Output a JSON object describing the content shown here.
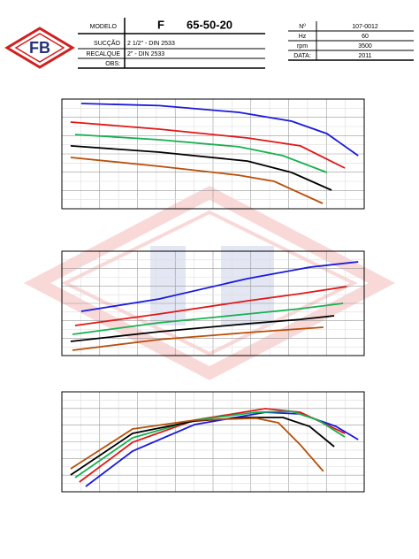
{
  "header": {
    "logo": "FB",
    "left_table": [
      [
        "MODELO",
        "F",
        "65-50-20"
      ],
      [
        "SUCÇÃO",
        "2 1/2\" - DIN 2533"
      ],
      [
        "RECALQUE",
        "2\" - DIN 2533"
      ],
      [
        "OBS:",
        ""
      ]
    ],
    "right_table": [
      [
        "Nº",
        "107-0012"
      ],
      [
        "Hz",
        "60"
      ],
      [
        "rpm",
        "3500"
      ],
      [
        "DATA:",
        "2011"
      ]
    ]
  },
  "chart_data": [
    {
      "type": "line",
      "xlim": [
        0,
        100
      ],
      "ylim": [
        0,
        100
      ],
      "grid": true,
      "series": [
        {
          "color": "#1a1adb",
          "x": [
            6.4,
            32.2,
            58.5,
            76,
            87.7,
            98
          ],
          "values": [
            96,
            94,
            87.9,
            79.8,
            68.5,
            48.4
          ]
        },
        {
          "color": "#e01818",
          "x": [
            2.9,
            32.2,
            61.4,
            78.9,
            93.6
          ],
          "values": [
            79,
            72.6,
            64.5,
            57.3,
            37.1
          ]
        },
        {
          "color": "#18b050",
          "x": [
            4.4,
            32.2,
            58.5,
            73.1,
            87.7
          ],
          "values": [
            67.7,
            62.9,
            56.5,
            48.4,
            33.1
          ]
        },
        {
          "color": "#000000",
          "x": [
            2.9,
            32.2,
            61.4,
            76,
            89.2
          ],
          "values": [
            57.3,
            51.6,
            43.5,
            33.1,
            16.9
          ]
        },
        {
          "color": "#b8500a",
          "x": [
            2.9,
            32.2,
            58.5,
            70.2,
            86.3
          ],
          "values": [
            46.8,
            38.7,
            30.6,
            25,
            4.8
          ]
        }
      ]
    },
    {
      "type": "line",
      "xlim": [
        0,
        100
      ],
      "ylim": [
        0,
        100
      ],
      "grid": true,
      "series": [
        {
          "color": "#1a1adb",
          "x": [
            6.4,
            32.2,
            61.4,
            81.9,
            98
          ],
          "values": [
            42.4,
            54.2,
            73.7,
            84.7,
            89.8
          ]
        },
        {
          "color": "#e01818",
          "x": [
            4.4,
            32.2,
            61.4,
            78.9,
            94.2
          ],
          "values": [
            28.8,
            39.8,
            52.5,
            59.3,
            66.1
          ]
        },
        {
          "color": "#18b050",
          "x": [
            3.5,
            32.2,
            61.4,
            78.9,
            93
          ],
          "values": [
            20.3,
            31.4,
            39.8,
            44.9,
            50
          ]
        },
        {
          "color": "#000000",
          "x": [
            2.9,
            32.2,
            61.4,
            78.9,
            90.1
          ],
          "values": [
            13.6,
            22.9,
            30.5,
            34.7,
            38.1
          ]
        },
        {
          "color": "#b8500a",
          "x": [
            3.5,
            32.2,
            61.4,
            86.5
          ],
          "values": [
            5.1,
            15.3,
            22,
            27.1
          ]
        }
      ]
    },
    {
      "type": "line",
      "xlim": [
        0,
        100
      ],
      "ylim": [
        0,
        100
      ],
      "grid": true,
      "series": [
        {
          "color": "#1a1adb",
          "x": [
            7.9,
            23.4,
            43.9,
            67.3,
            78.9,
            90.6,
            98
          ],
          "values": [
            5.3,
            40.7,
            67.3,
            79.6,
            77.9,
            65.5,
            52.2
          ]
        },
        {
          "color": "#e01818",
          "x": [
            5.8,
            23.4,
            43.9,
            67.3,
            78.9,
            93.6
          ],
          "values": [
            9.7,
            49.6,
            71.7,
            83.2,
            79.6,
            58.4
          ]
        },
        {
          "color": "#18b050",
          "x": [
            4.4,
            23.4,
            43.9,
            64.3,
            76,
            84.8,
            93.6
          ],
          "values": [
            14.2,
            54,
            71.7,
            79.6,
            80.5,
            71.7,
            54.9
          ]
        },
        {
          "color": "#000000",
          "x": [
            2.9,
            23.4,
            43.9,
            61.4,
            73.1,
            81.9,
            90.1
          ],
          "values": [
            16.8,
            58.4,
            70.8,
            74.3,
            74.3,
            65.5,
            45.1
          ]
        },
        {
          "color": "#b8500a",
          "x": [
            2.9,
            23.4,
            43.9,
            64.3,
            71.6,
            78.9,
            86.5
          ],
          "values": [
            23,
            62.8,
            71.7,
            73.5,
            69,
            46.9,
            20.4
          ]
        }
      ]
    }
  ]
}
